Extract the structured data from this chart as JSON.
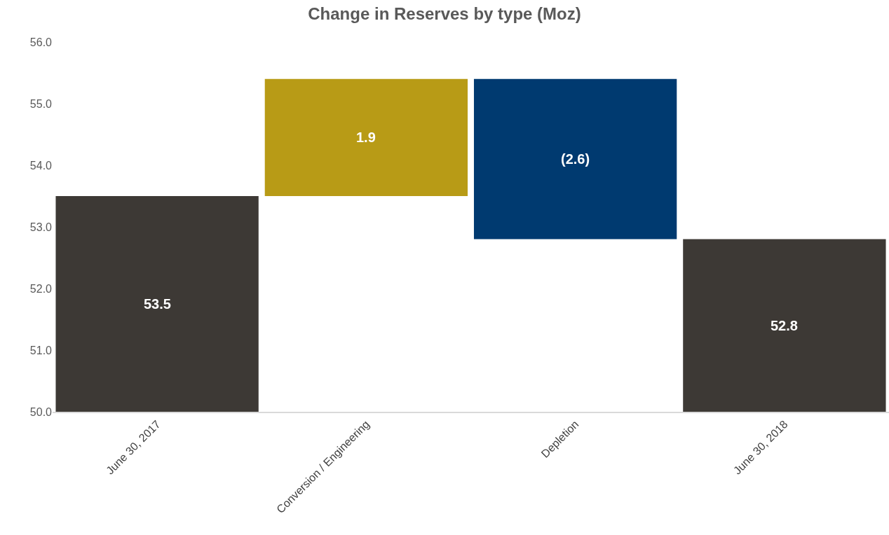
{
  "chart_data": {
    "type": "bar",
    "title": "Change in Reserves by type (Moz)",
    "categories": [
      "June 30, 2017",
      "Conversion / Engineering",
      "Depletion",
      "June 30, 2018"
    ],
    "values": [
      53.5,
      1.9,
      -2.6,
      52.8
    ],
    "base": [
      null,
      53.5,
      55.4,
      null
    ],
    "colors": [
      "#3d3935",
      "#b89b16",
      "#003a70",
      "#3d3935"
    ],
    "value_labels": [
      "53.5",
      "1.9",
      "(2.6)",
      "52.8"
    ],
    "ylim": [
      50,
      56
    ],
    "yticks": [
      {
        "value": 50,
        "label": "50.0"
      },
      {
        "value": 51,
        "label": "51.0"
      },
      {
        "value": 52,
        "label": "52.0"
      },
      {
        "value": 53,
        "label": "53.0"
      },
      {
        "value": 54,
        "label": "54.0"
      },
      {
        "value": 55,
        "label": "55.0"
      },
      {
        "value": 56,
        "label": "56.0"
      }
    ]
  }
}
